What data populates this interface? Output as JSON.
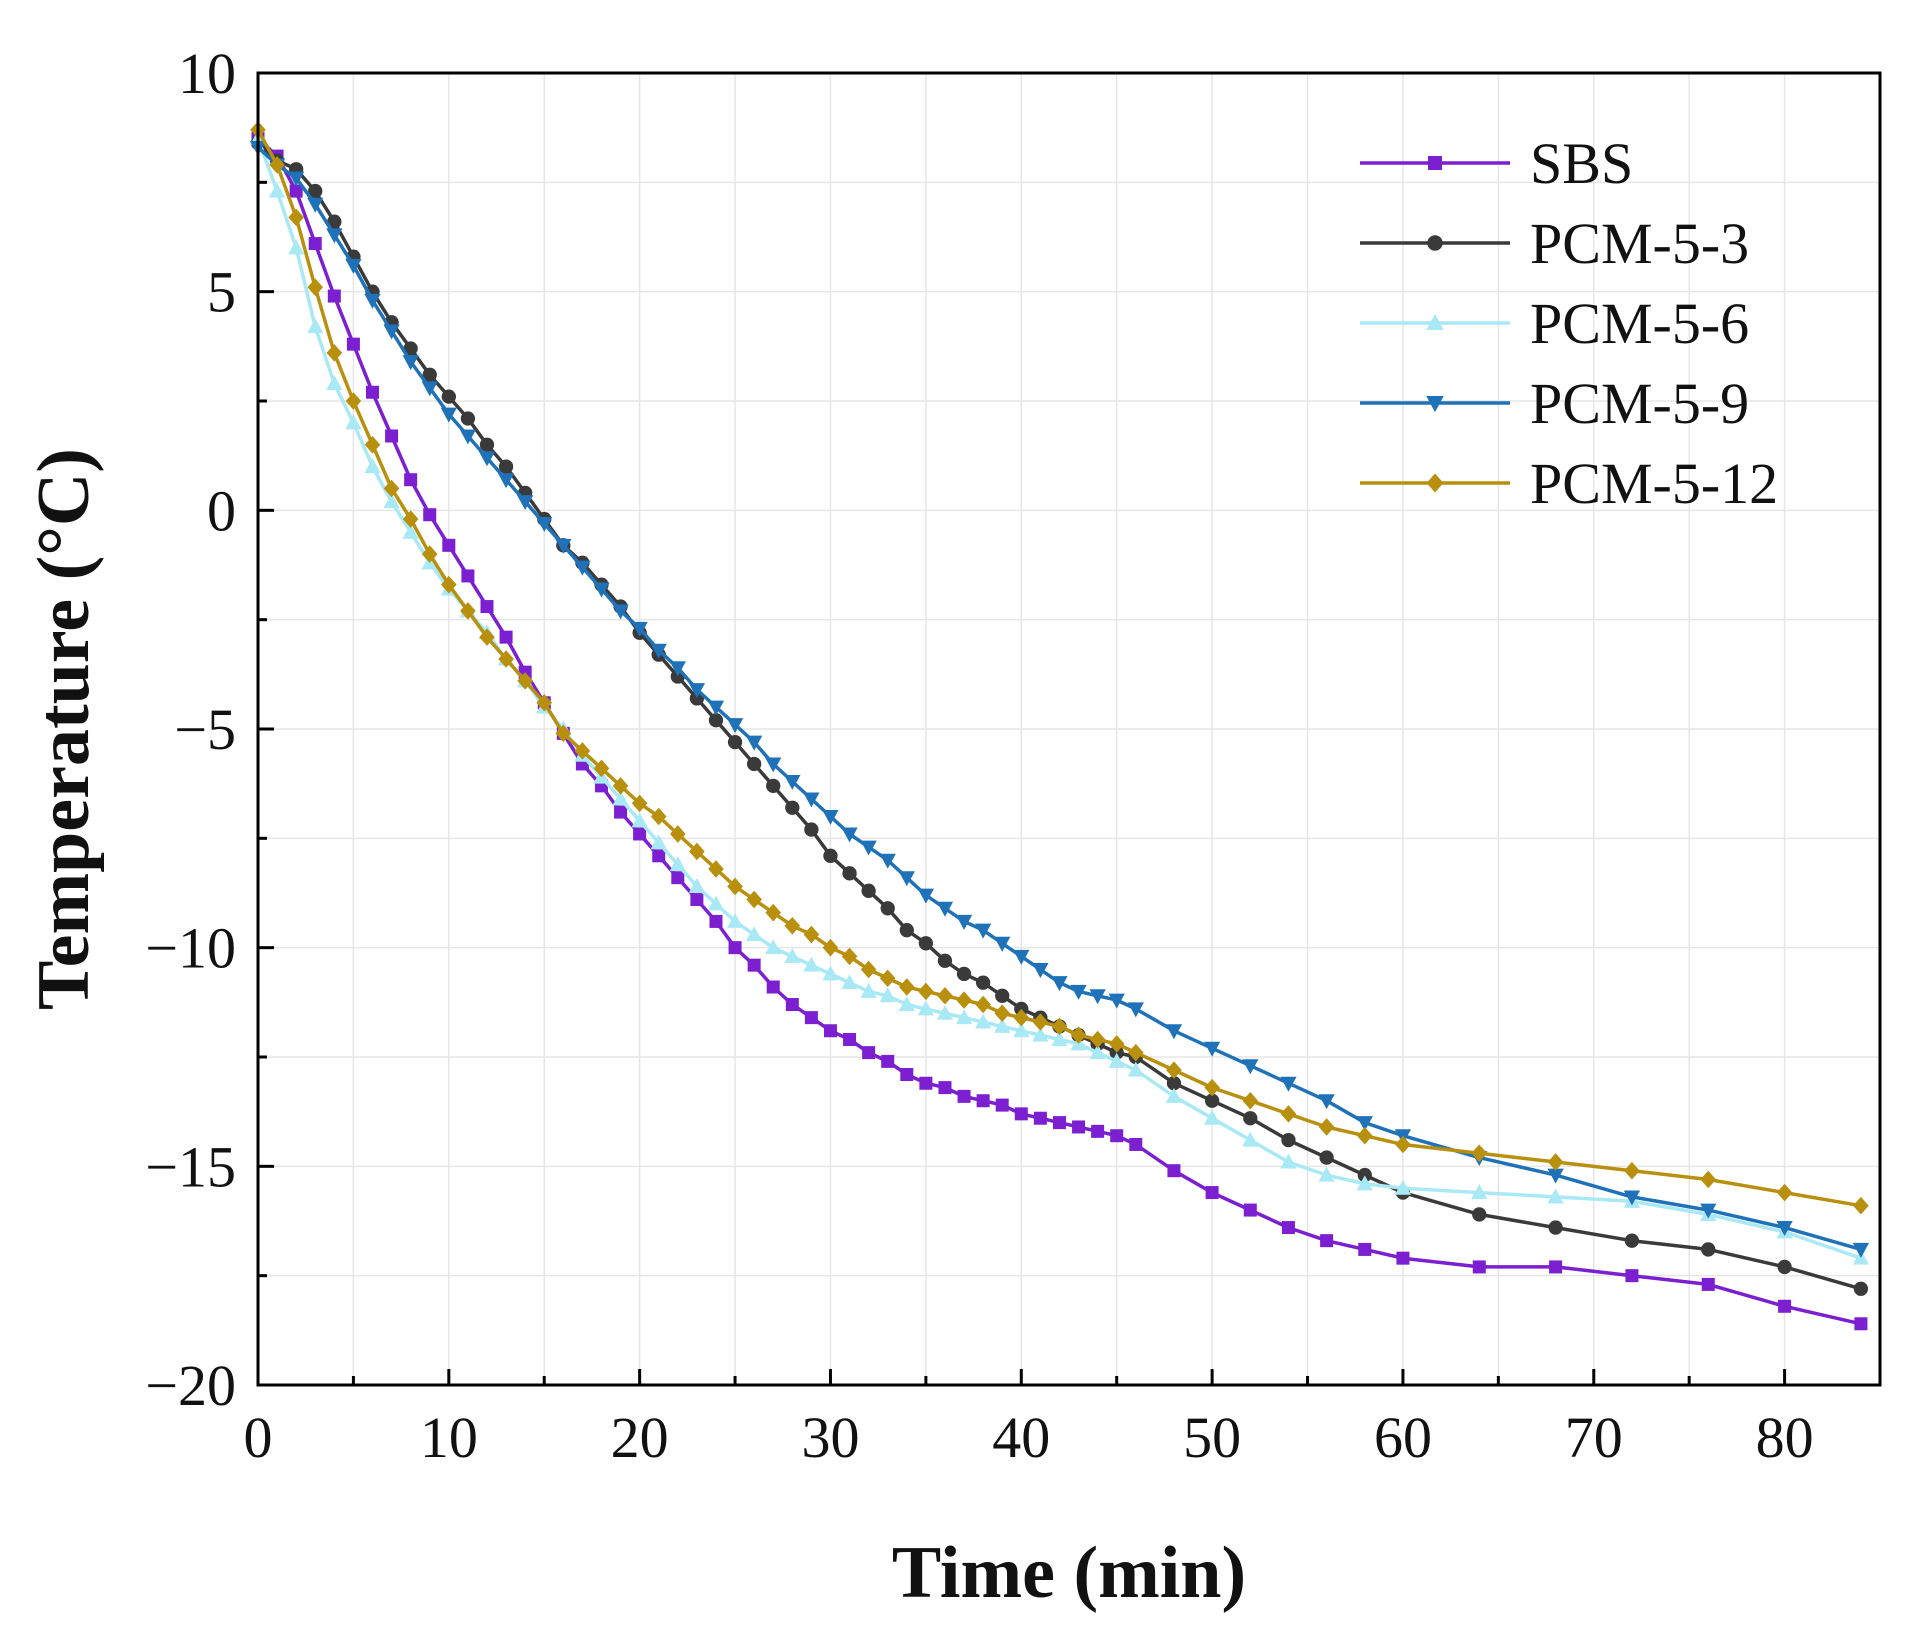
{
  "chart_data": {
    "type": "line",
    "title": "",
    "xlabel": "Time (min)",
    "ylabel": "Temperature (°C)",
    "xlim": [
      0,
      85
    ],
    "ylim": [
      -20,
      10
    ],
    "xticks": [
      0,
      10,
      20,
      30,
      40,
      50,
      60,
      70,
      80
    ],
    "yticks": [
      10,
      5,
      0,
      -5,
      -10,
      -15,
      -20
    ],
    "ytick_labels": [
      "10",
      "5",
      "0",
      "−5",
      "−10",
      "−15",
      "−20"
    ],
    "grid": true,
    "legend_position": "top-right",
    "series": [
      {
        "name": "SBS",
        "color": "#7b1fd1",
        "marker": "square",
        "x": [
          0,
          1,
          2,
          3,
          4,
          5,
          6,
          7,
          8,
          9,
          10,
          11,
          12,
          13,
          14,
          15,
          16,
          17,
          18,
          19,
          20,
          21,
          22,
          23,
          24,
          25,
          26,
          27,
          28,
          29,
          30,
          31,
          32,
          33,
          34,
          35,
          36,
          37,
          38,
          39,
          40,
          41,
          42,
          43,
          44,
          45,
          46,
          48,
          50,
          52,
          54,
          56,
          58,
          60,
          64,
          68,
          72,
          76,
          80,
          84
        ],
        "y": [
          8.5,
          8.1,
          7.3,
          6.1,
          4.9,
          3.8,
          2.7,
          1.7,
          0.7,
          -0.1,
          -0.8,
          -1.5,
          -2.2,
          -2.9,
          -3.7,
          -4.4,
          -5.1,
          -5.8,
          -6.3,
          -6.9,
          -7.4,
          -7.9,
          -8.4,
          -8.9,
          -9.4,
          -10.0,
          -10.4,
          -10.9,
          -11.3,
          -11.6,
          -11.9,
          -12.1,
          -12.4,
          -12.6,
          -12.9,
          -13.1,
          -13.2,
          -13.4,
          -13.5,
          -13.6,
          -13.8,
          -13.9,
          -14.0,
          -14.1,
          -14.2,
          -14.3,
          -14.5,
          -15.1,
          -15.6,
          -16.0,
          -16.4,
          -16.7,
          -16.9,
          -17.1,
          -17.3,
          -17.3,
          -17.5,
          -17.7,
          -18.2,
          -18.6
        ]
      },
      {
        "name": "PCM-5-3",
        "color": "#3a3a3a",
        "marker": "circle",
        "x": [
          0,
          1,
          2,
          3,
          4,
          5,
          6,
          7,
          8,
          9,
          10,
          11,
          12,
          13,
          14,
          15,
          16,
          17,
          18,
          19,
          20,
          21,
          22,
          23,
          24,
          25,
          26,
          27,
          28,
          29,
          30,
          31,
          32,
          33,
          34,
          35,
          36,
          37,
          38,
          39,
          40,
          41,
          42,
          43,
          44,
          45,
          46,
          48,
          50,
          52,
          54,
          56,
          58,
          60,
          64,
          68,
          72,
          76,
          80,
          84
        ],
        "y": [
          8.4,
          8.0,
          7.8,
          7.3,
          6.6,
          5.8,
          5.0,
          4.3,
          3.7,
          3.1,
          2.6,
          2.1,
          1.5,
          1.0,
          0.4,
          -0.2,
          -0.8,
          -1.2,
          -1.7,
          -2.2,
          -2.8,
          -3.3,
          -3.8,
          -4.3,
          -4.8,
          -5.3,
          -5.8,
          -6.3,
          -6.8,
          -7.3,
          -7.9,
          -8.3,
          -8.7,
          -9.1,
          -9.6,
          -9.9,
          -10.3,
          -10.6,
          -10.8,
          -11.1,
          -11.4,
          -11.6,
          -11.8,
          -12.0,
          -12.2,
          -12.4,
          -12.5,
          -13.1,
          -13.5,
          -13.9,
          -14.4,
          -14.8,
          -15.2,
          -15.6,
          -16.1,
          -16.4,
          -16.7,
          -16.9,
          -17.3,
          -17.8
        ]
      },
      {
        "name": "PCM-5-6",
        "color": "#a9e9f5",
        "marker": "triangle-up",
        "x": [
          0,
          1,
          2,
          3,
          4,
          5,
          6,
          7,
          8,
          9,
          10,
          11,
          12,
          13,
          14,
          15,
          16,
          17,
          18,
          19,
          20,
          21,
          22,
          23,
          24,
          25,
          26,
          27,
          28,
          29,
          30,
          31,
          32,
          33,
          34,
          35,
          36,
          37,
          38,
          39,
          40,
          41,
          42,
          43,
          44,
          45,
          46,
          48,
          50,
          52,
          54,
          56,
          58,
          60,
          64,
          68,
          72,
          76,
          80,
          84
        ],
        "y": [
          8.5,
          7.3,
          6.0,
          4.2,
          2.9,
          2.0,
          1.0,
          0.2,
          -0.5,
          -1.2,
          -1.8,
          -2.3,
          -2.8,
          -3.4,
          -3.9,
          -4.5,
          -5.0,
          -5.6,
          -6.1,
          -6.6,
          -7.1,
          -7.6,
          -8.1,
          -8.6,
          -9.0,
          -9.4,
          -9.7,
          -10.0,
          -10.2,
          -10.4,
          -10.6,
          -10.8,
          -11.0,
          -11.1,
          -11.3,
          -11.4,
          -11.5,
          -11.6,
          -11.7,
          -11.8,
          -11.9,
          -12.0,
          -12.1,
          -12.2,
          -12.4,
          -12.6,
          -12.8,
          -13.4,
          -13.9,
          -14.4,
          -14.9,
          -15.2,
          -15.4,
          -15.5,
          -15.6,
          -15.7,
          -15.8,
          -16.1,
          -16.5,
          -17.1
        ]
      },
      {
        "name": "PCM-5-9",
        "color": "#1f72b8",
        "marker": "triangle-down",
        "x": [
          0,
          1,
          2,
          3,
          4,
          5,
          6,
          7,
          8,
          9,
          10,
          11,
          12,
          13,
          14,
          15,
          16,
          17,
          18,
          19,
          20,
          21,
          22,
          23,
          24,
          25,
          26,
          27,
          28,
          29,
          30,
          31,
          32,
          33,
          34,
          35,
          36,
          37,
          38,
          39,
          40,
          41,
          42,
          43,
          44,
          45,
          46,
          48,
          50,
          52,
          54,
          56,
          58,
          60,
          64,
          68,
          72,
          76,
          80,
          84
        ],
        "y": [
          8.3,
          7.9,
          7.6,
          7.0,
          6.3,
          5.6,
          4.8,
          4.1,
          3.4,
          2.8,
          2.2,
          1.7,
          1.2,
          0.7,
          0.2,
          -0.3,
          -0.8,
          -1.3,
          -1.8,
          -2.3,
          -2.7,
          -3.2,
          -3.6,
          -4.1,
          -4.5,
          -4.9,
          -5.3,
          -5.8,
          -6.2,
          -6.6,
          -7.0,
          -7.4,
          -7.7,
          -8.0,
          -8.4,
          -8.8,
          -9.1,
          -9.4,
          -9.6,
          -9.9,
          -10.2,
          -10.5,
          -10.8,
          -11.0,
          -11.1,
          -11.2,
          -11.4,
          -11.9,
          -12.3,
          -12.7,
          -13.1,
          -13.5,
          -14.0,
          -14.3,
          -14.8,
          -15.2,
          -15.7,
          -16.0,
          -16.4,
          -16.9
        ]
      },
      {
        "name": "PCM-5-12",
        "color": "#b8900e",
        "marker": "diamond",
        "x": [
          0,
          1,
          2,
          3,
          4,
          5,
          6,
          7,
          8,
          9,
          10,
          11,
          12,
          13,
          14,
          15,
          16,
          17,
          18,
          19,
          20,
          21,
          22,
          23,
          24,
          25,
          26,
          27,
          28,
          29,
          30,
          31,
          32,
          33,
          34,
          35,
          36,
          37,
          38,
          39,
          40,
          41,
          42,
          43,
          44,
          45,
          46,
          48,
          50,
          52,
          54,
          56,
          58,
          60,
          64,
          68,
          72,
          76,
          80,
          84
        ],
        "y": [
          8.7,
          7.9,
          6.7,
          5.1,
          3.6,
          2.5,
          1.5,
          0.5,
          -0.2,
          -1.0,
          -1.7,
          -2.3,
          -2.9,
          -3.4,
          -3.9,
          -4.4,
          -5.1,
          -5.5,
          -5.9,
          -6.3,
          -6.7,
          -7.0,
          -7.4,
          -7.8,
          -8.2,
          -8.6,
          -8.9,
          -9.2,
          -9.5,
          -9.7,
          -10.0,
          -10.2,
          -10.5,
          -10.7,
          -10.9,
          -11.0,
          -11.1,
          -11.2,
          -11.3,
          -11.5,
          -11.6,
          -11.7,
          -11.8,
          -12.0,
          -12.1,
          -12.2,
          -12.4,
          -12.8,
          -13.2,
          -13.5,
          -13.8,
          -14.1,
          -14.3,
          -14.5,
          -14.7,
          -14.9,
          -15.1,
          -15.3,
          -15.6,
          -15.9
        ]
      }
    ]
  }
}
